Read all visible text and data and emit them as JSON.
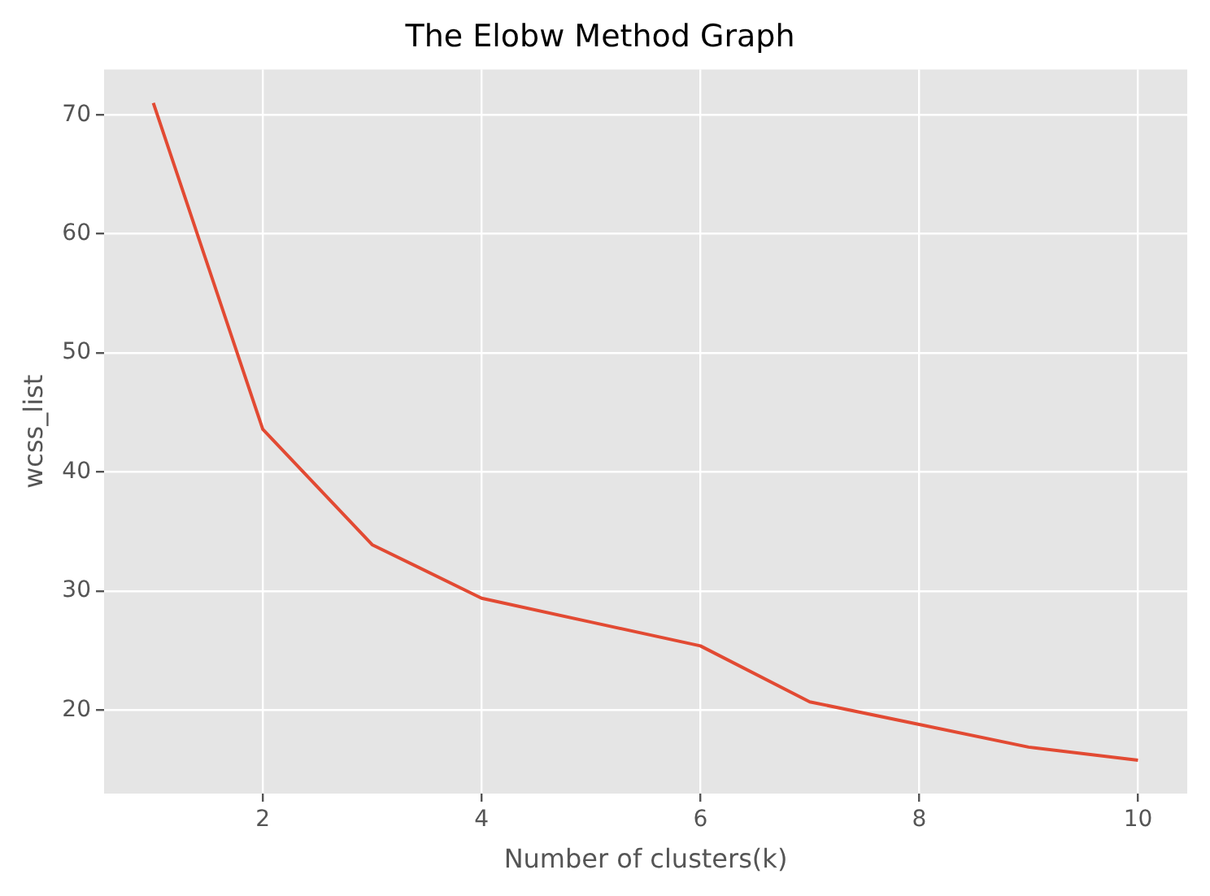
{
  "chart_data": {
    "type": "line",
    "title": "The Elobw Method Graph",
    "xlabel": "Number of clusters(k)",
    "ylabel": "wcss_list",
    "x": [
      1,
      2,
      3,
      4,
      5,
      6,
      7,
      8,
      9,
      10
    ],
    "series": [
      {
        "color": "#e24a33",
        "values": [
          71.0,
          43.6,
          33.9,
          29.4,
          27.4,
          25.4,
          20.7,
          18.8,
          16.9,
          15.8
        ]
      }
    ],
    "xlim": [
      0.55,
      10.45
    ],
    "ylim": [
      13.0,
      73.8
    ],
    "xticks": [
      2,
      4,
      6,
      8,
      10
    ],
    "yticks": [
      20,
      30,
      40,
      50,
      60,
      70
    ],
    "grid": true,
    "legend": false,
    "marker": "none",
    "line_style": "solid"
  }
}
